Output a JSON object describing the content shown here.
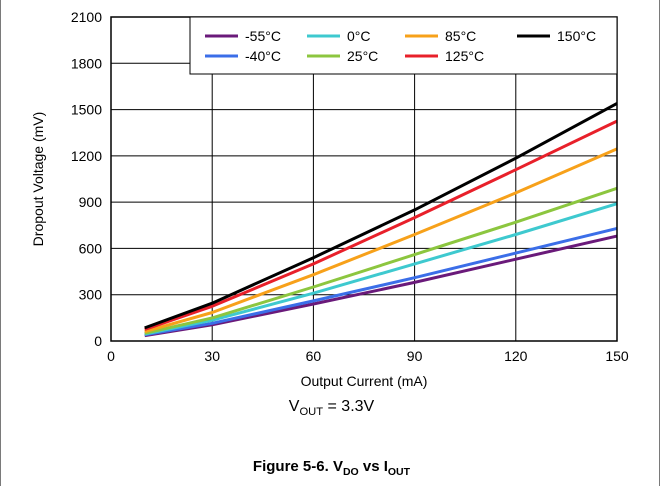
{
  "chart_data": {
    "type": "line",
    "xlabel": "Output Current (mA)",
    "ylabel": "Dropout Voltage (mV)",
    "xlim": [
      0,
      150
    ],
    "ylim": [
      0,
      2100
    ],
    "x_ticks": [
      0,
      30,
      60,
      90,
      120,
      150
    ],
    "y_ticks": [
      0,
      300,
      600,
      900,
      1200,
      1500,
      1800,
      2100
    ],
    "grid": true,
    "legend_position": "top-right",
    "x": [
      10,
      30,
      60,
      90,
      120,
      150
    ],
    "series": [
      {
        "name": "-55°C",
        "color": "#6a1a7a",
        "values": [
          35,
          105,
          240,
          380,
          530,
          680
        ]
      },
      {
        "name": "-40°C",
        "color": "#3b6ee8",
        "values": [
          40,
          115,
          260,
          410,
          570,
          730
        ]
      },
      {
        "name": "0°C",
        "color": "#3ec9cf",
        "values": [
          45,
          135,
          310,
          500,
          690,
          890
        ]
      },
      {
        "name": "25°C",
        "color": "#8cc63f",
        "values": [
          50,
          150,
          350,
          560,
          770,
          990
        ]
      },
      {
        "name": "85°C",
        "color": "#f7a11a",
        "values": [
          60,
          185,
          430,
          690,
          960,
          1245
        ]
      },
      {
        "name": "125°C",
        "color": "#e8202a",
        "values": [
          75,
          225,
          500,
          800,
          1110,
          1425
        ]
      },
      {
        "name": "150°C",
        "color": "#000000",
        "values": [
          85,
          245,
          540,
          850,
          1185,
          1540
        ]
      }
    ],
    "annotation": {
      "prefix": "V",
      "sub": "OUT",
      "suffix": " = 3.3V"
    },
    "caption": {
      "prefix": "Figure 5-6. V",
      "sub1": "DO",
      "mid": " vs I",
      "sub2": "OUT"
    }
  }
}
